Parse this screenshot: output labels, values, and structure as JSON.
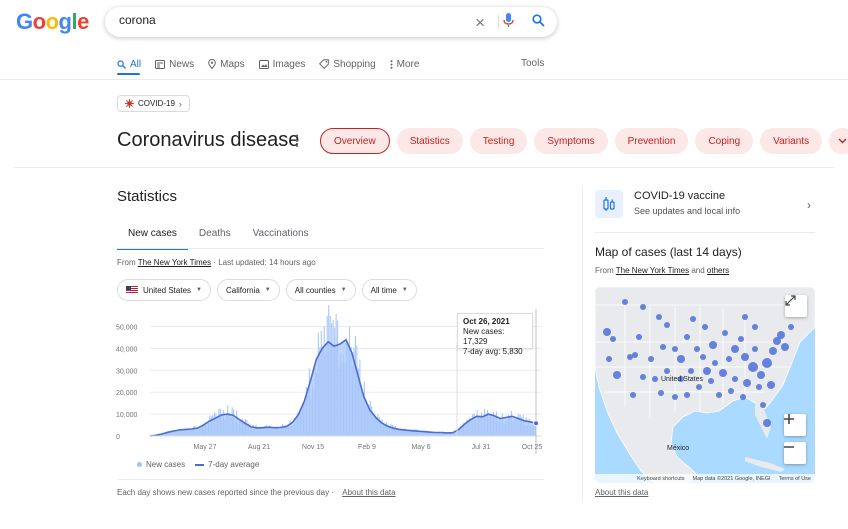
{
  "logo": {
    "letters": [
      "G",
      "o",
      "o",
      "g",
      "l",
      "e"
    ],
    "colors": [
      "#4285f4",
      "#ea4335",
      "#fbbc05",
      "#4285f4",
      "#34a853",
      "#ea4335"
    ]
  },
  "search": {
    "query": "corona",
    "icons": [
      "close-icon",
      "microphone-icon",
      "search-icon"
    ]
  },
  "nav": {
    "items": [
      {
        "label": "All",
        "icon": "search-icon",
        "active": true
      },
      {
        "label": "News",
        "icon": "news-icon"
      },
      {
        "label": "Maps",
        "icon": "map-pin-icon"
      },
      {
        "label": "Images",
        "icon": "image-icon"
      },
      {
        "label": "Shopping",
        "icon": "tag-icon"
      },
      {
        "label": "More",
        "icon": "more-vertical-icon"
      }
    ],
    "tools": "Tools"
  },
  "topic_chip": {
    "label": "COVID-19",
    "icon": "virus-icon"
  },
  "title": "Coronavirus disease",
  "pills": [
    "Overview",
    "Statistics",
    "Testing",
    "Symptoms",
    "Prevention",
    "Coping",
    "Variants"
  ],
  "stats": {
    "heading": "Statistics",
    "tabs": [
      "New cases",
      "Deaths",
      "Vaccinations"
    ],
    "source_prefix": "From ",
    "source_link": "The New York Times",
    "source_suffix": " · Last updated: 14 hours ago",
    "filters": [
      "United States",
      "California",
      "All counties",
      "All time"
    ],
    "tooltip": {
      "date": "Oct 26, 2021",
      "line1": "New cases: 17,329",
      "line2": "7-day avg: 5,830"
    },
    "legend": {
      "bars": "New cases",
      "line": "7-day average"
    },
    "footnote": "Each day shows new cases reported since the previous day",
    "footnote_link": "About this data"
  },
  "chart_data": {
    "type": "area",
    "title": "",
    "xlabel": "",
    "ylabel": "",
    "x_ticks": [
      "May 27",
      "Aug 21",
      "Nov 15",
      "Feb 9",
      "May 6",
      "Jul 31",
      "Oct 25"
    ],
    "y_ticks": [
      "0",
      "10,000",
      "20,000",
      "30,000",
      "40,000",
      "50,000"
    ],
    "ylim": [
      0,
      58000
    ],
    "series": [
      {
        "name": "7-day average",
        "values": [
          0,
          300,
          900,
          1700,
          2300,
          2800,
          3000,
          3200,
          3600,
          5000,
          6800,
          8100,
          9600,
          10000,
          9500,
          7600,
          5800,
          4200,
          3700,
          3800,
          4000,
          3800,
          3900,
          4400,
          6200,
          9800,
          16000,
          25000,
          35000,
          40000,
          43000,
          41000,
          42000,
          44000,
          38000,
          28000,
          18000,
          12000,
          8500,
          6000,
          4500,
          3500,
          3000,
          2700,
          2400,
          2200,
          2000,
          1800,
          1600,
          1600,
          1400,
          1500,
          3000,
          5500,
          7500,
          9000,
          8800,
          10000,
          9200,
          8000,
          8500,
          9000,
          8000,
          7000,
          6500,
          5830
        ]
      }
    ],
    "grid": true,
    "legend": "bottom-left"
  },
  "vaccine": {
    "title": "COVID-19 vaccine",
    "subtitle": "See updates and local info"
  },
  "map": {
    "title": "Map of cases (last 14 days)",
    "source_prefix": "From ",
    "source_link": "The New York Times",
    "source_and": " and ",
    "source_link2": "others",
    "labels": {
      "us": "United States",
      "mexico": "México"
    },
    "footer": [
      "Keyboard shortcuts",
      "Map data ©2021 Google, INEGI",
      "Terms of Use"
    ],
    "about": "About this data",
    "dot_color": "#4c6ed9"
  }
}
